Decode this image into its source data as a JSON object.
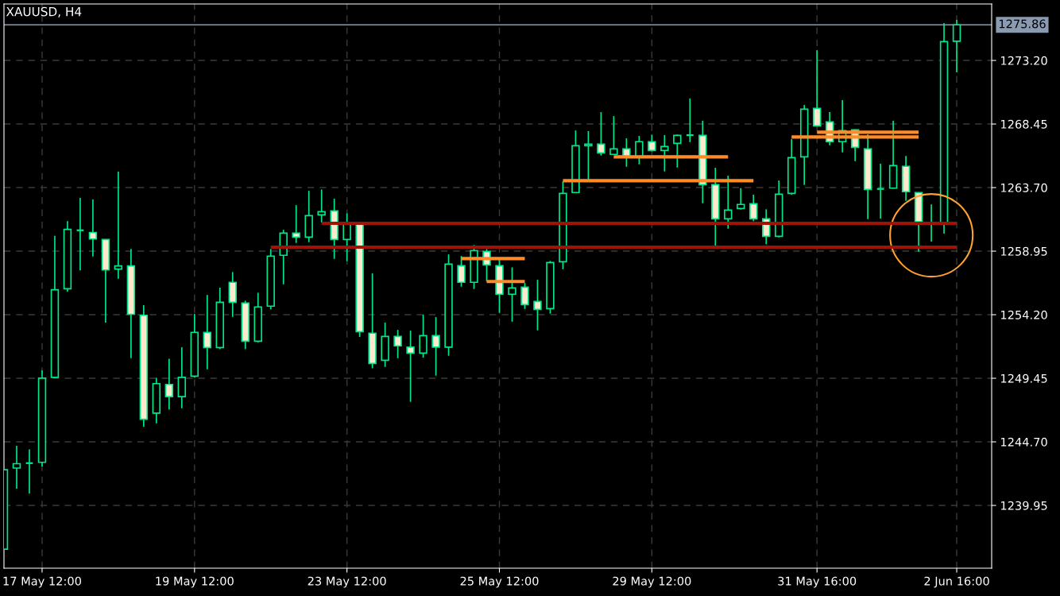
{
  "chart_data": {
    "type": "candlestick",
    "title": "XAUUSD, H4",
    "color": "#00e68a",
    "categories": [
      null,
      null,
      null,
      "17 May 12:00",
      null,
      null,
      null,
      null,
      null,
      null,
      null,
      null,
      null,
      null,
      null,
      "19 May 12:00",
      null,
      null,
      null,
      null,
      null,
      null,
      null,
      null,
      null,
      null,
      null,
      "23 May 12:00",
      null,
      null,
      null,
      null,
      null,
      null,
      null,
      null,
      null,
      null,
      null,
      "25 May 12:00",
      null,
      null,
      null,
      null,
      null,
      null,
      null,
      null,
      null,
      null,
      null,
      "29 May 12:00",
      null,
      null,
      null,
      null,
      null,
      null,
      null,
      null,
      null,
      null,
      null,
      null,
      "31 May 16:00",
      null,
      null,
      null,
      null,
      null,
      null,
      null,
      null,
      null,
      null,
      "2 Jun 16:00"
    ],
    "ohlc": [
      [
        1236.68,
        1242.62,
        1236.68,
        1242.62
      ],
      [
        1242.74,
        1244.4,
        1241.2,
        1243.07
      ],
      [
        1243.11,
        1244.14,
        1240.84,
        1243.11
      ],
      [
        1243.17,
        1250.04,
        1242.86,
        1249.46
      ],
      [
        1249.52,
        1260.1,
        1249.45,
        1256.07
      ],
      [
        1256.14,
        1261.19,
        1255.93,
        1260.58
      ],
      [
        1260.51,
        1262.93,
        1257.52,
        1260.51
      ],
      [
        1260.35,
        1262.81,
        1258.55,
        1259.86
      ],
      [
        1259.82,
        1259.85,
        1253.61,
        1257.54
      ],
      [
        1257.61,
        1264.89,
        1256.89,
        1257.85
      ],
      [
        1257.85,
        1259.12,
        1250.95,
        1254.23
      ],
      [
        1254.16,
        1254.91,
        1245.83,
        1246.39
      ],
      [
        1246.85,
        1249.48,
        1246.08,
        1249.05
      ],
      [
        1248.99,
        1250.91,
        1247.12,
        1248.08
      ],
      [
        1248.08,
        1251.77,
        1247.21,
        1249.52
      ],
      [
        1249.61,
        1254.26,
        1249.51,
        1252.88
      ],
      [
        1252.88,
        1255.68,
        1250.12,
        1251.75
      ],
      [
        1251.75,
        1256.22,
        1251.63,
        1255.13
      ],
      [
        1256.62,
        1257.39,
        1254.04,
        1255.13
      ],
      [
        1255.07,
        1255.25,
        1251.63,
        1252.22
      ],
      [
        1252.22,
        1255.84,
        1252.14,
        1254.78
      ],
      [
        1254.84,
        1259.11,
        1254.6,
        1258.58
      ],
      [
        1258.64,
        1260.55,
        1256.47,
        1260.3
      ],
      [
        1260.3,
        1262.39,
        1259.56,
        1260.0
      ],
      [
        1260.0,
        1263.46,
        1259.62,
        1261.6
      ],
      [
        1261.66,
        1263.56,
        1261.09,
        1261.9
      ],
      [
        1261.96,
        1262.87,
        1258.37,
        1259.82
      ],
      [
        1259.82,
        1261.78,
        1258.2,
        1261.03
      ],
      [
        1260.97,
        1261.1,
        1252.54,
        1252.93
      ],
      [
        1252.82,
        1257.29,
        1250.2,
        1250.56
      ],
      [
        1250.8,
        1253.61,
        1250.3,
        1252.58
      ],
      [
        1252.58,
        1253.07,
        1250.95,
        1251.87
      ],
      [
        1251.78,
        1253.01,
        1247.69,
        1251.33
      ],
      [
        1251.33,
        1254.2,
        1250.99,
        1252.64
      ],
      [
        1252.64,
        1254.02,
        1249.65,
        1251.78
      ],
      [
        1251.78,
        1258.71,
        1251.13,
        1257.98
      ],
      [
        1257.86,
        1258.59,
        1256.3,
        1256.62
      ],
      [
        1256.62,
        1259.41,
        1256.12,
        1258.99
      ],
      [
        1258.93,
        1259.11,
        1256.69,
        1257.92
      ],
      [
        1257.86,
        1258.31,
        1254.34,
        1255.73
      ],
      [
        1255.73,
        1257.74,
        1253.68,
        1256.2
      ],
      [
        1256.26,
        1256.57,
        1254.63,
        1254.95
      ],
      [
        1255.19,
        1256.81,
        1253.03,
        1254.6
      ],
      [
        1254.66,
        1258.22,
        1254.28,
        1258.1
      ],
      [
        1258.16,
        1264.16,
        1257.6,
        1263.27
      ],
      [
        1263.33,
        1267.97,
        1263.33,
        1266.83
      ],
      [
        1266.83,
        1267.92,
        1264.25,
        1266.95
      ],
      [
        1266.95,
        1269.34,
        1266.09,
        1266.29
      ],
      [
        1266.18,
        1269.04,
        1266.18,
        1266.59
      ],
      [
        1266.59,
        1267.38,
        1265.26,
        1266.0
      ],
      [
        1266.0,
        1267.56,
        1265.44,
        1267.13
      ],
      [
        1267.13,
        1267.66,
        1266.41,
        1266.47
      ],
      [
        1266.47,
        1267.62,
        1264.91,
        1266.77
      ],
      [
        1267.01,
        1267.66,
        1265.2,
        1267.6
      ],
      [
        1267.62,
        1270.35,
        1267.1,
        1267.62
      ],
      [
        1267.6,
        1268.69,
        1262.53,
        1263.92
      ],
      [
        1263.92,
        1265.18,
        1259.37,
        1261.37
      ],
      [
        1261.37,
        1264.59,
        1260.63,
        1262.02
      ],
      [
        1262.14,
        1263.66,
        1262.06,
        1262.44
      ],
      [
        1262.49,
        1263.17,
        1261.19,
        1261.37
      ],
      [
        1261.37,
        1262.08,
        1259.47,
        1260.06
      ],
      [
        1260.06,
        1264.23,
        1259.98,
        1263.21
      ],
      [
        1263.27,
        1267.32,
        1263.17,
        1265.94
      ],
      [
        1266.0,
        1269.87,
        1263.9,
        1269.56
      ],
      [
        1269.62,
        1273.97,
        1268.31,
        1268.31
      ],
      [
        1268.61,
        1269.34,
        1266.86,
        1267.13
      ],
      [
        1267.13,
        1270.23,
        1266.33,
        1267.96
      ],
      [
        1268.02,
        1268.05,
        1265.68,
        1266.71
      ],
      [
        1266.59,
        1267.68,
        1261.34,
        1263.56
      ],
      [
        1263.6,
        1265.48,
        1261.38,
        1263.6
      ],
      [
        1263.66,
        1268.69,
        1263.66,
        1265.34
      ],
      [
        1265.29,
        1266.07,
        1262.71,
        1263.39
      ],
      [
        1263.33,
        1263.33,
        1258.91,
        1261.15
      ],
      [
        1261.03,
        1262.44,
        1259.66,
        1261.03
      ],
      [
        1261.03,
        1275.99,
        1260.26,
        1274.61
      ],
      [
        1274.64,
        1276.23,
        1272.31,
        1275.86
      ]
    ],
    "series": [
      {
        "type": "line",
        "color": "#a01408",
        "values": [
          null,
          null,
          null,
          null,
          null,
          null,
          null,
          null,
          null,
          null,
          null,
          null,
          null,
          null,
          null,
          null,
          null,
          null,
          null,
          null,
          null,
          null,
          null,
          null,
          null,
          1261.03,
          1261.03,
          1261.03,
          1261.03,
          1261.03,
          1261.03,
          1261.03,
          1261.03,
          1261.03,
          1261.03,
          1261.03,
          1261.03,
          1261.03,
          1261.03,
          1261.03,
          1261.03,
          1261.03,
          1261.03,
          1261.03,
          1261.03,
          1261.03,
          1261.03,
          1261.03,
          1261.03,
          1261.03,
          1261.03,
          1261.03,
          1261.03,
          1261.03,
          1261.03,
          1261.03,
          1261.03,
          1261.03,
          1261.03,
          1261.03,
          1261.03,
          1261.03,
          1261.03,
          1261.03,
          1261.03,
          1261.03,
          1261.03,
          1261.03,
          1261.03,
          1261.03,
          1261.03,
          1261.03,
          1261.03,
          1261.03,
          1261.03,
          1261.03
        ]
      },
      {
        "type": "line",
        "color": "#a01408",
        "values": [
          null,
          null,
          null,
          null,
          null,
          null,
          null,
          null,
          null,
          null,
          null,
          null,
          null,
          null,
          null,
          null,
          null,
          null,
          null,
          null,
          null,
          1259.25,
          1259.25,
          1259.25,
          1259.25,
          1259.25,
          1259.25,
          1259.25,
          1259.25,
          1259.25,
          1259.25,
          1259.25,
          1259.25,
          1259.25,
          1259.25,
          1259.25,
          1259.25,
          1259.25,
          1259.25,
          1259.25,
          1259.25,
          1259.25,
          1259.25,
          1259.25,
          1259.25,
          1259.25,
          1259.25,
          1259.25,
          1259.25,
          1259.25,
          1259.25,
          1259.25,
          1259.25,
          1259.25,
          1259.25,
          1259.25,
          1259.25,
          1259.25,
          1259.25,
          1259.25,
          1259.25,
          1259.25,
          1259.25,
          1259.25,
          1259.25,
          1259.25,
          1259.25,
          1259.25,
          1259.25,
          1259.25,
          1259.25,
          1259.25,
          1259.25,
          1259.25,
          1259.25,
          1259.25
        ]
      },
      {
        "type": "line",
        "color": "#ff8a2a",
        "values": [
          null,
          null,
          null,
          null,
          null,
          null,
          null,
          null,
          null,
          null,
          null,
          null,
          null,
          null,
          null,
          null,
          null,
          null,
          null,
          null,
          null,
          null,
          null,
          null,
          null,
          null,
          null,
          null,
          null,
          null,
          null,
          null,
          null,
          null,
          null,
          null,
          1258.4,
          1258.4,
          1258.4,
          1258.4,
          1258.4,
          1258.4,
          null,
          null,
          null,
          null,
          null,
          null,
          null,
          null,
          null,
          null,
          null,
          null,
          null,
          null,
          null,
          null,
          null,
          null,
          null,
          null,
          null,
          null,
          null,
          null,
          null,
          null,
          null,
          null,
          null,
          null,
          null,
          null,
          null,
          null
        ]
      },
      {
        "type": "line",
        "color": "#ff8a2a",
        "values": [
          null,
          null,
          null,
          null,
          null,
          null,
          null,
          null,
          null,
          null,
          null,
          null,
          null,
          null,
          null,
          null,
          null,
          null,
          null,
          null,
          null,
          null,
          null,
          null,
          null,
          null,
          null,
          null,
          null,
          null,
          null,
          null,
          null,
          null,
          null,
          null,
          null,
          null,
          1256.68,
          1256.68,
          1256.68,
          1256.68,
          null,
          null,
          null,
          null,
          null,
          null,
          null,
          null,
          null,
          null,
          null,
          null,
          null,
          null,
          null,
          null,
          null,
          null,
          null,
          null,
          null,
          null,
          null,
          null,
          null,
          null,
          null,
          null,
          null,
          null,
          null,
          null,
          null,
          null
        ]
      },
      {
        "type": "line",
        "color": "#ff8a2a",
        "values": [
          null,
          null,
          null,
          null,
          null,
          null,
          null,
          null,
          null,
          null,
          null,
          null,
          null,
          null,
          null,
          null,
          null,
          null,
          null,
          null,
          null,
          null,
          null,
          null,
          null,
          null,
          null,
          null,
          null,
          null,
          null,
          null,
          null,
          null,
          null,
          null,
          null,
          null,
          null,
          null,
          null,
          null,
          null,
          null,
          null,
          null,
          null,
          null,
          1266.0,
          1266.0,
          1266.0,
          1266.0,
          1266.0,
          1266.0,
          1266.0,
          1266.0,
          1266.0,
          1266.0,
          null,
          null,
          null,
          null,
          null,
          null,
          null,
          null,
          null,
          null,
          null,
          null,
          null,
          null,
          null,
          null,
          null,
          null
        ]
      },
      {
        "type": "line",
        "color": "#ff8a2a",
        "values": [
          null,
          null,
          null,
          null,
          null,
          null,
          null,
          null,
          null,
          null,
          null,
          null,
          null,
          null,
          null,
          null,
          null,
          null,
          null,
          null,
          null,
          null,
          null,
          null,
          null,
          null,
          null,
          null,
          null,
          null,
          null,
          null,
          null,
          null,
          null,
          null,
          null,
          null,
          null,
          null,
          null,
          null,
          null,
          null,
          1264.22,
          1264.22,
          1264.22,
          1264.22,
          1264.22,
          1264.22,
          1264.22,
          1264.22,
          1264.22,
          1264.22,
          1264.22,
          1264.22,
          1264.22,
          1264.22,
          1264.22,
          1264.22,
          null,
          null,
          null,
          null,
          null,
          null,
          null,
          null,
          null,
          null,
          null,
          null,
          null,
          null,
          null,
          null
        ]
      },
      {
        "type": "line",
        "color": "#ff8a2a",
        "values": [
          null,
          null,
          null,
          null,
          null,
          null,
          null,
          null,
          null,
          null,
          null,
          null,
          null,
          null,
          null,
          null,
          null,
          null,
          null,
          null,
          null,
          null,
          null,
          null,
          null,
          null,
          null,
          null,
          null,
          null,
          null,
          null,
          null,
          null,
          null,
          null,
          null,
          null,
          null,
          null,
          null,
          null,
          null,
          null,
          null,
          null,
          null,
          null,
          null,
          null,
          null,
          null,
          null,
          null,
          null,
          null,
          null,
          null,
          null,
          null,
          null,
          null,
          null,
          null,
          1267.84,
          1267.84,
          1267.84,
          1267.84,
          1267.84,
          1267.84,
          1267.84,
          1267.84,
          1267.84,
          null,
          null,
          null
        ]
      },
      {
        "type": "line",
        "color": "#ff8a2a",
        "values": [
          null,
          null,
          null,
          null,
          null,
          null,
          null,
          null,
          null,
          null,
          null,
          null,
          null,
          null,
          null,
          null,
          null,
          null,
          null,
          null,
          null,
          null,
          null,
          null,
          null,
          null,
          null,
          null,
          null,
          null,
          null,
          null,
          null,
          null,
          null,
          null,
          null,
          null,
          null,
          null,
          null,
          null,
          null,
          null,
          null,
          null,
          null,
          null,
          null,
          null,
          null,
          null,
          null,
          null,
          null,
          null,
          null,
          null,
          null,
          null,
          null,
          null,
          1267.48,
          1267.48,
          1267.48,
          1267.48,
          1267.48,
          1267.48,
          1267.48,
          1267.48,
          1267.48,
          1267.48,
          1267.48,
          null,
          null,
          null
        ]
      }
    ],
    "ylim": [
      1235.26,
      1277.42
    ],
    "yticks": [
      {
        "value": 1239.95,
        "label": "1239.95"
      },
      {
        "value": 1244.7,
        "label": "1244.70"
      },
      {
        "value": 1249.45,
        "label": "1249.45"
      },
      {
        "value": 1254.2,
        "label": "1254.20"
      },
      {
        "value": 1258.95,
        "label": "1258.95"
      },
      {
        "value": 1263.7,
        "label": "1263.70"
      },
      {
        "value": 1268.45,
        "label": "1268.45"
      },
      {
        "value": 1273.2,
        "label": "1273.20"
      }
    ],
    "ref_lines": [
      {
        "axis": "y",
        "value": 1275.86,
        "label": "1275.86",
        "color": "#8a9ab0"
      }
    ],
    "grid": true
  }
}
